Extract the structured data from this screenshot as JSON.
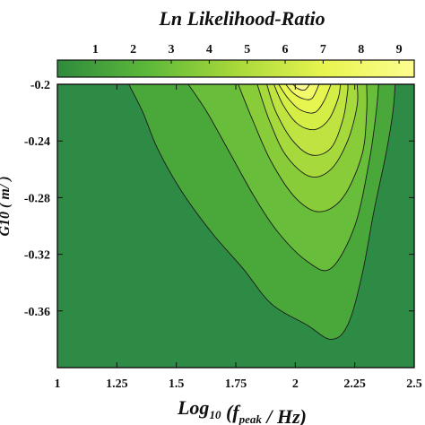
{
  "chart_data": {
    "type": "contour",
    "title": "Ln Likelihood-Ratio",
    "xlabel": "Log10 (fpeak / Hz)",
    "xlabel_parts": {
      "main": "Log",
      "sub1": "10",
      "mid": " (f",
      "sub2": "peak",
      "end": " / Hz)"
    },
    "ylabel_fragment": "G10 ( m/ )",
    "xlim": [
      1,
      2.5
    ],
    "ylim": [
      -0.4,
      -0.2
    ],
    "x_ticks": [
      1,
      1.25,
      1.5,
      1.75,
      2,
      2.25,
      2.5
    ],
    "x_tick_labels": [
      "1",
      "1.25",
      "1.5",
      "1.75",
      "2",
      "2.25",
      "2.5"
    ],
    "y_ticks": [
      -0.2,
      -0.24,
      -0.28,
      -0.32,
      -0.36
    ],
    "y_tick_labels": [
      "-0.2",
      "-0.24",
      "-0.28",
      "-0.32",
      "-0.36"
    ],
    "colorbar": {
      "range": [
        0,
        9.4
      ],
      "ticks": [
        1,
        2,
        3,
        4,
        5,
        6,
        7,
        8,
        9
      ],
      "tick_labels": [
        "1",
        "2",
        "3",
        "4",
        "5",
        "6",
        "7",
        "8",
        "9"
      ],
      "colors": [
        "#2e8b3c",
        "#5cb83a",
        "#a8d83a",
        "#e8f550",
        "#fdfd90"
      ]
    },
    "peak": {
      "x": 2.02,
      "y": -0.2,
      "value": 9.2
    },
    "contour_levels": [
      {
        "level": 1,
        "color": "#4aa83a",
        "points": [
          [
            1.3,
            -0.2
          ],
          [
            1.36,
            -0.22
          ],
          [
            1.42,
            -0.245
          ],
          [
            1.52,
            -0.275
          ],
          [
            1.65,
            -0.305
          ],
          [
            1.78,
            -0.33
          ],
          [
            1.9,
            -0.355
          ],
          [
            2.05,
            -0.37
          ],
          [
            2.15,
            -0.38
          ],
          [
            2.22,
            -0.37
          ],
          [
            2.28,
            -0.335
          ],
          [
            2.33,
            -0.29
          ],
          [
            2.38,
            -0.25
          ],
          [
            2.41,
            -0.22
          ],
          [
            2.42,
            -0.2
          ]
        ]
      },
      {
        "level": 2,
        "color": "#68bd3a",
        "points": [
          [
            1.55,
            -0.2
          ],
          [
            1.63,
            -0.22
          ],
          [
            1.73,
            -0.25
          ],
          [
            1.83,
            -0.28
          ],
          [
            1.93,
            -0.305
          ],
          [
            2.05,
            -0.325
          ],
          [
            2.15,
            -0.33
          ],
          [
            2.25,
            -0.3
          ],
          [
            2.31,
            -0.255
          ],
          [
            2.34,
            -0.22
          ],
          [
            2.35,
            -0.2
          ]
        ]
      },
      {
        "level": 3,
        "color": "#88cc3a",
        "points": [
          [
            1.76,
            -0.2
          ],
          [
            1.82,
            -0.225
          ],
          [
            1.9,
            -0.255
          ],
          [
            2.0,
            -0.28
          ],
          [
            2.1,
            -0.29
          ],
          [
            2.2,
            -0.28
          ],
          [
            2.28,
            -0.25
          ],
          [
            2.3,
            -0.22
          ],
          [
            2.3,
            -0.2
          ]
        ]
      },
      {
        "level": 4,
        "color": "#a5d93c",
        "points": [
          [
            1.84,
            -0.2
          ],
          [
            1.89,
            -0.225
          ],
          [
            1.96,
            -0.25
          ],
          [
            2.06,
            -0.265
          ],
          [
            2.15,
            -0.26
          ],
          [
            2.22,
            -0.24
          ],
          [
            2.26,
            -0.215
          ],
          [
            2.26,
            -0.2
          ]
        ]
      },
      {
        "level": 5,
        "color": "#bfe441",
        "points": [
          [
            1.88,
            -0.2
          ],
          [
            1.92,
            -0.22
          ],
          [
            1.99,
            -0.24
          ],
          [
            2.07,
            -0.25
          ],
          [
            2.15,
            -0.245
          ],
          [
            2.2,
            -0.225
          ],
          [
            2.22,
            -0.205
          ],
          [
            2.22,
            -0.2
          ]
        ]
      },
      {
        "level": 6,
        "color": "#d4ee46",
        "points": [
          [
            1.91,
            -0.2
          ],
          [
            1.95,
            -0.215
          ],
          [
            2.01,
            -0.228
          ],
          [
            2.08,
            -0.232
          ],
          [
            2.14,
            -0.225
          ],
          [
            2.18,
            -0.21
          ],
          [
            2.19,
            -0.2
          ]
        ]
      },
      {
        "level": 7,
        "color": "#e6f54f",
        "points": [
          [
            1.93,
            -0.2
          ],
          [
            1.97,
            -0.21
          ],
          [
            2.02,
            -0.218
          ],
          [
            2.08,
            -0.22
          ],
          [
            2.12,
            -0.212
          ],
          [
            2.15,
            -0.2
          ]
        ]
      },
      {
        "level": 8,
        "color": "#f2f96a",
        "points": [
          [
            1.96,
            -0.2
          ],
          [
            1.99,
            -0.206
          ],
          [
            2.03,
            -0.21
          ],
          [
            2.07,
            -0.21
          ],
          [
            2.1,
            -0.2
          ]
        ]
      },
      {
        "level": 9,
        "color": "#fcfc92",
        "points": [
          [
            1.99,
            -0.2
          ],
          [
            2.01,
            -0.203
          ],
          [
            2.04,
            -0.204
          ],
          [
            2.06,
            -0.2
          ]
        ]
      }
    ],
    "background_color": "#2e8b45"
  }
}
